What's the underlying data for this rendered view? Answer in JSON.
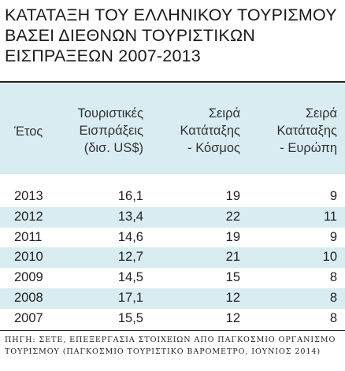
{
  "title_lines": [
    "ΚΑΤΑΤΑΞΗ ΤΟΥ ΕΛΛΗΝΙΚΟΥ ΤΟΥΡΙΣΜΟΥ",
    "ΒΑΣΕΙ ΔΙΕΘΝΩΝ ΤΟΥΡΙΣΤΙΚΩΝ",
    "ΕΙΣΠΡΑΞΕΩΝ 2007-2013"
  ],
  "header": {
    "year": "Έτος",
    "revenue": [
      "Τουριστικές",
      "Εισπράξεις",
      "(δισ. US$)"
    ],
    "world": [
      "Σειρά",
      "Κατάταξης",
      "- Κόσμος"
    ],
    "europe": [
      "Σειρά",
      "Κατάταξης",
      "- Ευρώπη"
    ]
  },
  "chart_data": {
    "type": "table",
    "columns": [
      "Έτος",
      "Τουριστικές Εισπράξεις (δισ. US$)",
      "Σειρά Κατάταξης - Κόσμος",
      "Σειρά Κατάταξης - Ευρώπη"
    ],
    "rows": [
      [
        "2013",
        "16,1",
        "19",
        "9"
      ],
      [
        "2012",
        "13,4",
        "22",
        "11"
      ],
      [
        "2011",
        "14,6",
        "19",
        "9"
      ],
      [
        "2010",
        "12,7",
        "21",
        "10"
      ],
      [
        "2009",
        "14,5",
        "15",
        "8"
      ],
      [
        "2008",
        "17,1",
        "12",
        "8"
      ],
      [
        "2007",
        "15,5",
        "12",
        "8"
      ]
    ]
  },
  "source_lines": [
    "ΠΗΓΗ: ΣΕΤΕ, ΕΠΕΞΕΡΓΑΣΙΑ ΣΤΟΙΧΕΙΩΝ ΑΠΟ ΠΑΓΚΟΣΜΙΟ ΟΡΓΑΝΙΣΜΟ",
    "ΤΟΥΡΙΣΜΟΥ (ΠΑΓΚΟΣΜΙΟ ΤΟΥΡΙΣΤΙΚΟ ΒΑΡΟΜΕΤΡΟ, ΙΟΥΝΙΟΣ 2014)"
  ]
}
